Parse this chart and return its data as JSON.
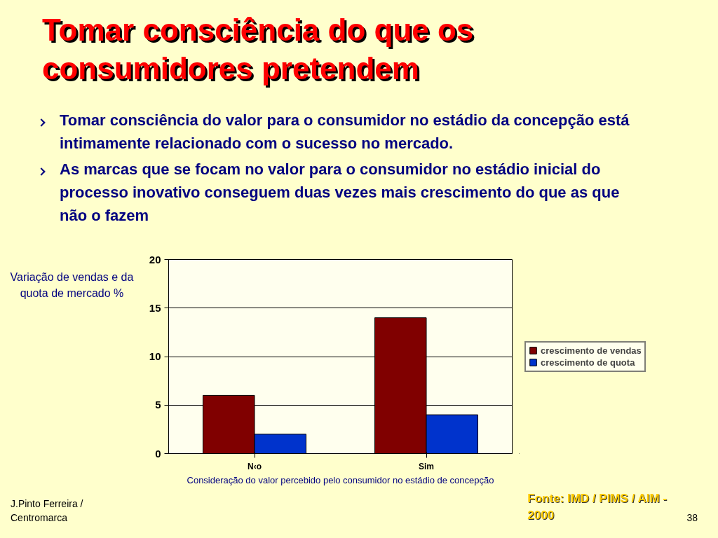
{
  "chart_data": {
    "type": "bar",
    "title": "Tomar consciência do que os consumidores pretendem",
    "categories": [
      "N‹o",
      "Sim"
    ],
    "series": [
      {
        "name": "crescimento de vendas",
        "color": "#800000",
        "values": [
          6,
          14
        ]
      },
      {
        "name": "crescimento de quota",
        "color": "#0033cc",
        "values": [
          2,
          4
        ]
      }
    ],
    "ylim": [
      0,
      20
    ],
    "yticks": [
      0,
      5,
      10,
      15,
      20
    ],
    "grid": "y",
    "legend": "right",
    "xlabel": "Consideração do valor percebido pelo consumidor no estádio de concepção",
    "ylabel": "Variação de vendas e da quota de mercado %",
    "annotations": [
      "Tomar consciência do valor para o consumidor no estádio da concepção está intimamente relacionado com o sucesso no mercado.",
      "As marcas que se focam no valor para o consumidor no estádio inicial do processo inovativo conseguem duas vezes mais crescimento do que as que não o fazem",
      "J.Pinto Ferreira / Centromarca",
      "Fonte: IMD / PIMS / AIM - 2000",
      "38"
    ]
  }
}
